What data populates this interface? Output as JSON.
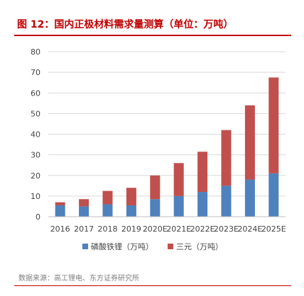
{
  "title": "图 12：国内正极材料需求量测算（单位：万吨）",
  "source": "数据来源：高工锂电、东方证券研究所",
  "colors": {
    "title": "#c00000",
    "lfp": "#4f81bd",
    "ternary": "#c0504d",
    "grid": "#d9d9d9",
    "axis": "#bfbfbf"
  },
  "chart_data": {
    "type": "bar",
    "stacked": true,
    "categories": [
      "2016",
      "2017",
      "2018",
      "2019",
      "2020E",
      "2021E",
      "2022E",
      "2023E",
      "2024E",
      "2025E"
    ],
    "series": [
      {
        "name": "磷酸铁锂（万吨）",
        "color": "#4f81bd",
        "values": [
          5.5,
          5,
          6,
          5.5,
          8.5,
          10,
          12,
          15,
          18,
          21
        ]
      },
      {
        "name": "三元（万吨）",
        "color": "#c0504d",
        "values": [
          1.5,
          3.5,
          6.5,
          8.5,
          11.5,
          16,
          19.5,
          27,
          36,
          46.5
        ]
      }
    ],
    "y_ticks": [
      0,
      10,
      20,
      30,
      40,
      50,
      60,
      70,
      80
    ],
    "ylim": [
      0,
      80
    ],
    "grid": true,
    "legend_position": "bottom"
  }
}
